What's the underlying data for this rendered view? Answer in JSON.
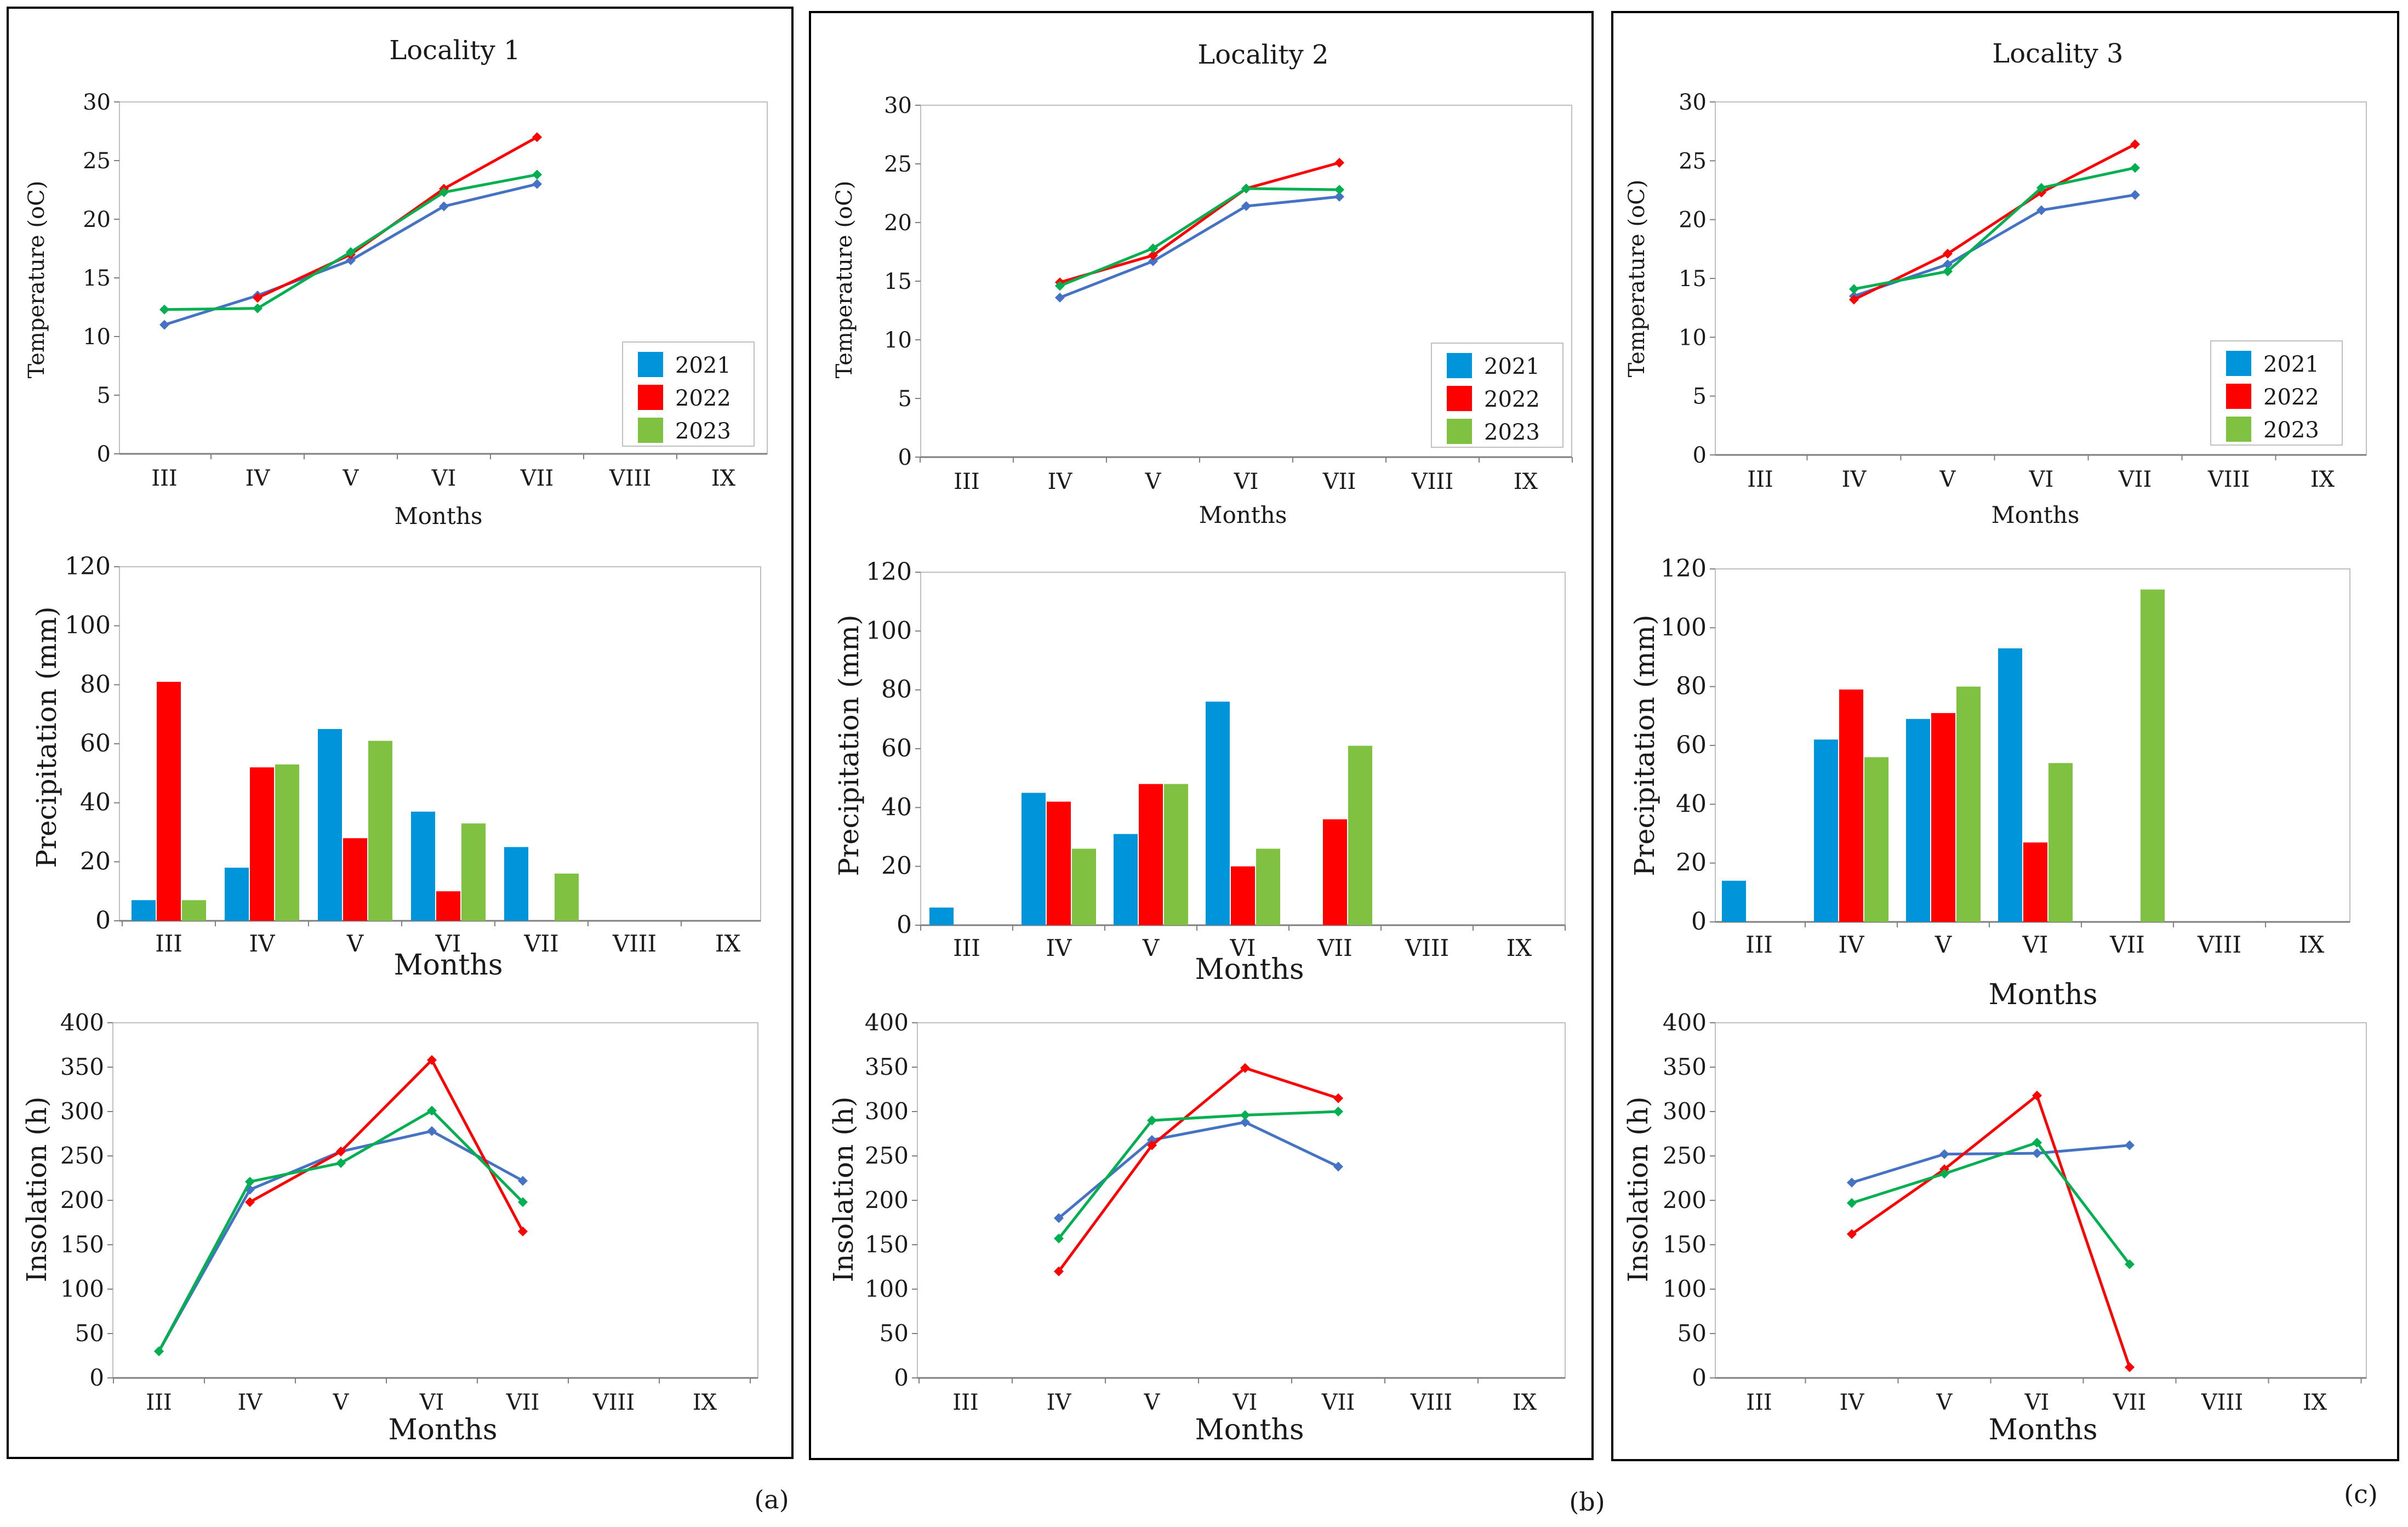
{
  "months": [
    "III",
    "IV",
    "V",
    "VI",
    "VII",
    "VIII",
    "IX"
  ],
  "legend": [
    "2021",
    "2022",
    "2023"
  ],
  "colors": {
    "temp": [
      "#4472c4",
      "#ff0000",
      "#00b050"
    ],
    "bars": [
      "#0095da",
      "#ff0000",
      "#7fc241"
    ],
    "axis": "#7f7f7f",
    "frame": "#000000"
  },
  "panels": [
    {
      "title": "Locality 1",
      "tag": "(a)",
      "temp_ylabel": "Temperature (oC)",
      "precip_ylabel": "Precipitation (mm)",
      "insol_ylabel": "Insolation (h)",
      "temp_xlabel": "Months",
      "precip_xlabel": "Months",
      "insol_xlabel": "Months"
    },
    {
      "title": "Locality 2",
      "tag": "(b)",
      "temp_ylabel": "Temperature (oC)",
      "precip_ylabel": "Precipitation (mm)",
      "insol_ylabel": "Insolation (h)",
      "temp_xlabel": "Months",
      "precip_xlabel": "Months",
      "insol_xlabel": "Months"
    },
    {
      "title": "Locality 3",
      "tag": "(c)",
      "temp_ylabel": "Temperature (oC)",
      "precip_ylabel": "Precipitation (mm)",
      "insol_ylabel": "Insolation (h)",
      "temp_xlabel": "Months",
      "precip_xlabel": "Months",
      "insol_xlabel": "Months"
    }
  ],
  "chart_data": [
    {
      "type": "line",
      "locality": "Locality 1",
      "title": "Locality 1",
      "xlabel": "Months",
      "ylabel": "Temperature (oC)",
      "ylim": [
        0,
        30
      ],
      "yticks": [
        0,
        5,
        10,
        15,
        20,
        25,
        30
      ],
      "categories": [
        "III",
        "IV",
        "V",
        "VI",
        "VII",
        "VIII",
        "IX"
      ],
      "legend": "bottom-right",
      "series": [
        {
          "name": "2021",
          "values": [
            11.0,
            13.5,
            16.5,
            21.1,
            23.0,
            null,
            null
          ]
        },
        {
          "name": "2022",
          "values": [
            null,
            13.3,
            17.0,
            22.6,
            27.0,
            null,
            null
          ]
        },
        {
          "name": "2023",
          "values": [
            12.3,
            12.4,
            17.2,
            22.3,
            23.8,
            null,
            null
          ]
        }
      ]
    },
    {
      "type": "bar",
      "locality": "Locality 1",
      "xlabel": "Months",
      "ylabel": "Precipitation (mm)",
      "ylim": [
        0,
        120
      ],
      "yticks": [
        0,
        20,
        40,
        60,
        80,
        100,
        120
      ],
      "categories": [
        "III",
        "IV",
        "V",
        "VI",
        "VII",
        "VIII",
        "IX"
      ],
      "series": [
        {
          "name": "2021",
          "values": [
            7,
            18,
            65,
            37,
            25,
            null,
            null
          ]
        },
        {
          "name": "2022",
          "values": [
            81,
            52,
            28,
            10,
            null,
            null,
            null
          ]
        },
        {
          "name": "2023",
          "values": [
            7,
            53,
            61,
            33,
            16,
            null,
            null
          ]
        }
      ]
    },
    {
      "type": "line",
      "locality": "Locality 1",
      "xlabel": "Months",
      "ylabel": "Insolation (h)",
      "ylim": [
        0,
        400
      ],
      "yticks": [
        0,
        50,
        100,
        150,
        200,
        250,
        300,
        350,
        400
      ],
      "categories": [
        "III",
        "IV",
        "V",
        "VI",
        "VII",
        "VIII",
        "IX"
      ],
      "series": [
        {
          "name": "2021",
          "values": [
            30,
            212,
            255,
            278,
            222,
            null,
            null
          ]
        },
        {
          "name": "2022",
          "values": [
            null,
            198,
            255,
            358,
            165,
            null,
            null
          ]
        },
        {
          "name": "2023",
          "values": [
            30,
            221,
            242,
            301,
            198,
            null,
            null
          ]
        }
      ]
    },
    {
      "type": "line",
      "locality": "Locality 2",
      "title": "Locality 2",
      "xlabel": "Months",
      "ylabel": "Temperature (oC)",
      "ylim": [
        0,
        30
      ],
      "yticks": [
        0,
        5,
        10,
        15,
        20,
        25,
        30
      ],
      "categories": [
        "III",
        "IV",
        "V",
        "VI",
        "VII",
        "VIII",
        "IX"
      ],
      "legend": "bottom-right",
      "series": [
        {
          "name": "2021",
          "values": [
            null,
            13.6,
            16.7,
            21.4,
            22.2,
            null,
            null
          ]
        },
        {
          "name": "2022",
          "values": [
            null,
            14.9,
            17.2,
            22.9,
            25.1,
            null,
            null
          ]
        },
        {
          "name": "2023",
          "values": [
            null,
            14.6,
            17.8,
            22.9,
            22.8,
            null,
            null
          ]
        }
      ]
    },
    {
      "type": "bar",
      "locality": "Locality 2",
      "xlabel": "Months",
      "ylabel": "Precipitation (mm)",
      "ylim": [
        0,
        120
      ],
      "yticks": [
        0,
        20,
        40,
        60,
        80,
        100,
        120
      ],
      "categories": [
        "III",
        "IV",
        "V",
        "VI",
        "VII",
        "VIII",
        "IX"
      ],
      "series": [
        {
          "name": "2021",
          "values": [
            6,
            45,
            31,
            76,
            null,
            null,
            null
          ]
        },
        {
          "name": "2022",
          "values": [
            null,
            42,
            48,
            20,
            36,
            null,
            null
          ]
        },
        {
          "name": "2023",
          "values": [
            null,
            26,
            48,
            26,
            61,
            null,
            null
          ]
        }
      ]
    },
    {
      "type": "line",
      "locality": "Locality 2",
      "xlabel": "Months",
      "ylabel": "Insolation (h)",
      "ylim": [
        0,
        400
      ],
      "yticks": [
        0,
        50,
        100,
        150,
        200,
        250,
        300,
        350,
        400
      ],
      "categories": [
        "III",
        "IV",
        "V",
        "VI",
        "VII",
        "VIII",
        "IX"
      ],
      "series": [
        {
          "name": "2021",
          "values": [
            null,
            180,
            268,
            288,
            238,
            null,
            null
          ]
        },
        {
          "name": "2022",
          "values": [
            null,
            120,
            262,
            349,
            315,
            null,
            null
          ]
        },
        {
          "name": "2023",
          "values": [
            null,
            157,
            290,
            296,
            300,
            null,
            null
          ]
        }
      ]
    },
    {
      "type": "line",
      "locality": "Locality 3",
      "title": "Locality 3",
      "xlabel": "Months",
      "ylabel": "Temperature (oC)",
      "ylim": [
        0,
        30
      ],
      "yticks": [
        0,
        5,
        10,
        15,
        20,
        25,
        30
      ],
      "categories": [
        "III",
        "IV",
        "V",
        "VI",
        "VII",
        "VIII",
        "IX"
      ],
      "legend": "bottom-right",
      "series": [
        {
          "name": "2021",
          "values": [
            null,
            13.5,
            16.2,
            20.8,
            22.1,
            null,
            null
          ]
        },
        {
          "name": "2022",
          "values": [
            null,
            13.2,
            17.1,
            22.3,
            26.4,
            null,
            null
          ]
        },
        {
          "name": "2023",
          "values": [
            null,
            14.1,
            15.6,
            22.7,
            24.4,
            null,
            null
          ]
        }
      ]
    },
    {
      "type": "bar",
      "locality": "Locality 3",
      "xlabel": "Months",
      "ylabel": "Precipitation (mm)",
      "ylim": [
        0,
        120
      ],
      "yticks": [
        0,
        20,
        40,
        60,
        80,
        100,
        120
      ],
      "categories": [
        "III",
        "IV",
        "V",
        "VI",
        "VII",
        "VIII",
        "IX"
      ],
      "series": [
        {
          "name": "2021",
          "values": [
            14,
            62,
            69,
            93,
            null,
            null,
            null
          ]
        },
        {
          "name": "2022",
          "values": [
            null,
            79,
            71,
            27,
            null,
            null,
            null
          ]
        },
        {
          "name": "2023",
          "values": [
            null,
            56,
            80,
            54,
            113,
            null,
            null
          ]
        }
      ]
    },
    {
      "type": "line",
      "locality": "Locality 3",
      "xlabel": "Months",
      "ylabel": "Insolation (h)",
      "ylim": [
        0,
        400
      ],
      "yticks": [
        0,
        50,
        100,
        150,
        200,
        250,
        300,
        350,
        400
      ],
      "categories": [
        "III",
        "IV",
        "V",
        "VI",
        "VII",
        "VIII",
        "IX"
      ],
      "series": [
        {
          "name": "2021",
          "values": [
            null,
            220,
            252,
            253,
            262,
            null,
            null
          ]
        },
        {
          "name": "2022",
          "values": [
            null,
            162,
            235,
            318,
            12,
            null,
            null
          ]
        },
        {
          "name": "2023",
          "values": [
            null,
            197,
            230,
            265,
            128,
            null,
            null
          ]
        }
      ]
    }
  ]
}
